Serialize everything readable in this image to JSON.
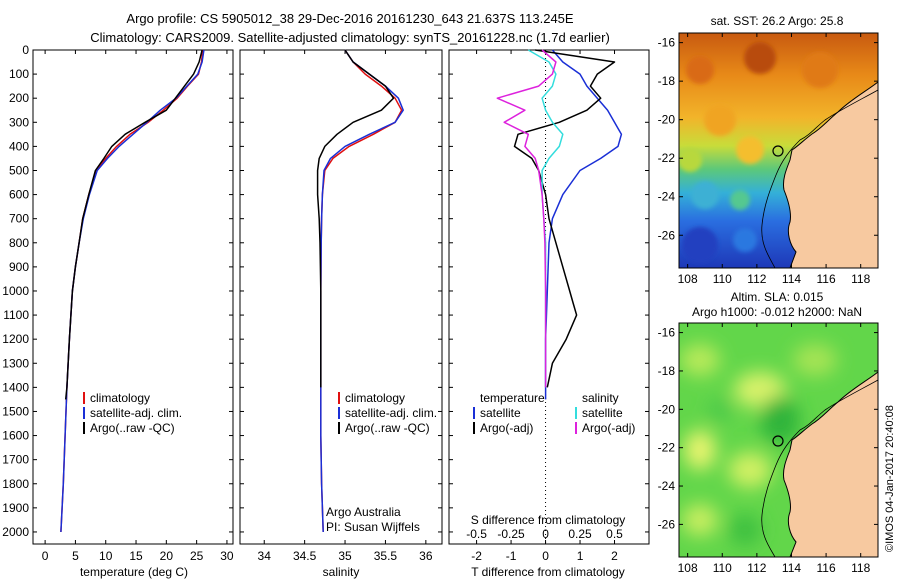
{
  "header": {
    "line1": "Argo profile: CS 5905012_38 29-Dec-2016 20161230_643 21.637S 113.245E",
    "line2": "Climatology: CARS2009. Satellite-adjusted climatology: synTS_20161228.nc (1.7d earlier)"
  },
  "colors": {
    "clim": "#e01010",
    "sat": "#1a2fd6",
    "argo": "#000000",
    "sat_s": "#33dddd",
    "argo_s": "#dd22dd",
    "land": "#f7c9a0"
  },
  "chart_data": [
    {
      "type": "line",
      "panel": "temperature",
      "xlabel": "temperature (deg C)",
      "ylabel": "",
      "xlim": [
        -2,
        31
      ],
      "ylim": [
        2050,
        0
      ],
      "xticks": [
        0,
        5,
        10,
        15,
        20,
        25,
        30
      ],
      "yticks": [
        0,
        100,
        200,
        300,
        400,
        500,
        600,
        700,
        800,
        900,
        1000,
        1100,
        1200,
        1300,
        1400,
        1500,
        1600,
        1700,
        1800,
        1900,
        2000
      ],
      "legend": [
        "climatology",
        "satellite-adj. clim.",
        "Argo(..raw -QC)"
      ],
      "series": [
        {
          "name": "climatology",
          "color": "clim",
          "x": [
            26.0,
            25.8,
            25.3,
            23.5,
            21.8,
            19.5,
            17.0,
            14.0,
            11.8,
            10.0,
            8.4,
            7.2,
            6.2,
            5.6,
            5.0,
            4.5,
            4.0,
            3.6,
            3.3,
            3.0,
            2.8,
            2.6
          ],
          "y": [
            0,
            50,
            100,
            150,
            200,
            250,
            300,
            350,
            400,
            450,
            500,
            600,
            700,
            800,
            900,
            1000,
            1200,
            1400,
            1600,
            1800,
            1900,
            2000
          ]
        },
        {
          "name": "satellite-adj. clim.",
          "color": "sat",
          "x": [
            26.2,
            25.9,
            25.2,
            23.4,
            21.6,
            19.0,
            16.8,
            14.5,
            12.2,
            10.3,
            8.6,
            7.3,
            6.3,
            5.6,
            5.0,
            4.5,
            4.0,
            3.6,
            3.3,
            3.0,
            2.8,
            2.6
          ],
          "y": [
            0,
            50,
            100,
            150,
            200,
            250,
            300,
            350,
            400,
            450,
            500,
            600,
            700,
            800,
            900,
            1000,
            1200,
            1400,
            1600,
            1800,
            1900,
            2000
          ]
        },
        {
          "name": "Argo(..raw -QC)",
          "color": "argo",
          "x": [
            25.9,
            25.4,
            24.5,
            23.0,
            21.5,
            20.0,
            16.5,
            13.2,
            11.0,
            9.7,
            8.3,
            7.2,
            6.2,
            5.6,
            5.0,
            4.5,
            4.0,
            3.6,
            3.4
          ],
          "y": [
            0,
            50,
            100,
            150,
            200,
            250,
            300,
            350,
            400,
            450,
            500,
            600,
            700,
            800,
            900,
            1000,
            1200,
            1400,
            1450
          ]
        }
      ]
    },
    {
      "type": "line",
      "panel": "salinity",
      "xlabel": "salinity",
      "ylabel": "",
      "xlim": [
        33.7,
        36.2
      ],
      "ylim": [
        2050,
        0
      ],
      "xticks": [
        34,
        34.5,
        35,
        35.5,
        36
      ],
      "legend": [
        "climatology",
        "satellite-adj. clim.",
        "Argo(..raw -QC)"
      ],
      "annotation": [
        "Argo Australia",
        "PI: Susan Wijffels"
      ],
      "series": [
        {
          "name": "climatology",
          "color": "clim",
          "x": [
            35.0,
            35.1,
            35.25,
            35.45,
            35.62,
            35.7,
            35.62,
            35.35,
            35.05,
            34.85,
            34.75,
            34.72,
            34.71,
            34.705,
            34.7,
            34.7,
            34.7,
            34.7,
            34.71,
            34.72,
            34.73
          ],
          "y": [
            0,
            50,
            100,
            150,
            200,
            250,
            300,
            350,
            400,
            450,
            500,
            600,
            700,
            800,
            1000,
            1200,
            1400,
            1600,
            1800,
            1900,
            2000
          ]
        },
        {
          "name": "satellite-adj. clim.",
          "color": "sat",
          "x": [
            35.0,
            35.1,
            35.3,
            35.5,
            35.66,
            35.72,
            35.62,
            35.3,
            35.0,
            34.82,
            34.74,
            34.72,
            34.71,
            34.705,
            34.7,
            34.7,
            34.7,
            34.7,
            34.71,
            34.72,
            34.73
          ],
          "y": [
            0,
            50,
            100,
            150,
            200,
            250,
            300,
            350,
            400,
            450,
            500,
            600,
            700,
            800,
            1000,
            1200,
            1400,
            1600,
            1800,
            1900,
            2000
          ]
        },
        {
          "name": "Argo(..raw -QC)",
          "color": "argo",
          "x": [
            35.0,
            35.1,
            35.3,
            35.5,
            35.6,
            35.45,
            35.1,
            34.9,
            34.75,
            34.68,
            34.66,
            34.66,
            34.68,
            34.69,
            34.7,
            34.7,
            34.7
          ],
          "y": [
            0,
            50,
            100,
            150,
            200,
            250,
            300,
            350,
            400,
            450,
            500,
            600,
            700,
            800,
            1000,
            1200,
            1400
          ]
        }
      ]
    },
    {
      "type": "line",
      "panel": "difference",
      "xlabel": "T difference from climatology",
      "xlabel2": "S difference from climatology",
      "xlim": [
        -2.8,
        3.0
      ],
      "ylim": [
        2050,
        0
      ],
      "xticks": [
        -2,
        -1,
        0,
        1,
        2
      ],
      "xticks_top": [
        "-0.5",
        "-0.25",
        "0",
        "0.25",
        "0.5"
      ],
      "legend_titles": [
        "temperature",
        "salinity"
      ],
      "legend": [
        "satellite",
        "Argo(-adj)",
        "satellite",
        "Argo(-adj)"
      ],
      "series": [
        {
          "name": "satellite",
          "color": "sat",
          "x": [
            0.2,
            0.5,
            1.0,
            1.2,
            1.5,
            1.8,
            2.0,
            2.2,
            2.1,
            1.6,
            1.0,
            0.5,
            0.2,
            0.1,
            0.05,
            0,
            0,
            0,
            0
          ],
          "y": [
            0,
            50,
            100,
            150,
            200,
            250,
            300,
            350,
            400,
            450,
            500,
            600,
            700,
            800,
            1000,
            1200,
            1300,
            1400,
            1450
          ]
        },
        {
          "name": "Argo(-adj)",
          "color": "argo",
          "x": [
            -0.3,
            2.0,
            1.5,
            1.3,
            1.6,
            1.2,
            0.4,
            -0.8,
            -0.9,
            -0.4,
            -0.2,
            0.0,
            0.1,
            0.3,
            0.5,
            0.7,
            0.8,
            0.9,
            0.6,
            0.2,
            0.05
          ],
          "y": [
            0,
            50,
            100,
            150,
            200,
            250,
            300,
            350,
            400,
            450,
            500,
            600,
            700,
            800,
            900,
            1000,
            1050,
            1100,
            1200,
            1300,
            1400
          ]
        },
        {
          "name": "satellite",
          "color": "sat_s",
          "x": [
            -0.5,
            0.1,
            0.3,
            0.2,
            -0.1,
            0.0,
            0.2,
            0.5,
            0.4,
            0.1,
            -0.1,
            -0.1,
            -0.05,
            0,
            0,
            0,
            0
          ],
          "y": [
            0,
            50,
            100,
            150,
            200,
            250,
            300,
            350,
            400,
            450,
            500,
            600,
            700,
            800,
            1000,
            1200,
            1400
          ]
        },
        {
          "name": "Argo(-adj)",
          "color": "argo_s",
          "x": [
            -0.1,
            0.3,
            0.2,
            -0.2,
            -1.4,
            -0.6,
            -1.2,
            -0.5,
            -0.6,
            -0.3,
            -0.2,
            -0.1,
            -0.05,
            -0.02,
            0,
            0,
            0
          ],
          "y": [
            0,
            50,
            100,
            150,
            200,
            250,
            300,
            350,
            400,
            450,
            500,
            600,
            700,
            800,
            1000,
            1200,
            1400
          ]
        }
      ]
    },
    {
      "type": "heatmap",
      "panel": "sst-map",
      "title": "sat. SST: 26.2  Argo: 25.8",
      "xlim": [
        107.5,
        119
      ],
      "ylim": [
        -27.7,
        -15.5
      ],
      "xticks": [
        108,
        110,
        112,
        114,
        116,
        118
      ],
      "yticks": [
        -16,
        -18,
        -20,
        -22,
        -24,
        -26
      ],
      "argo_position": [
        113.245,
        -21.637
      ]
    },
    {
      "type": "heatmap",
      "panel": "sla-map",
      "title": "Altim. SLA: 0.015",
      "subtitle": "Argo h1000: -0.012 h2000: NaN",
      "xlim": [
        107.5,
        119
      ],
      "ylim": [
        -27.7,
        -15.5
      ],
      "xticks": [
        108,
        110,
        112,
        114,
        116,
        118
      ],
      "yticks": [
        -16,
        -18,
        -20,
        -22,
        -24,
        -26
      ],
      "argo_position": [
        113.245,
        -21.637
      ]
    }
  ],
  "watermark": "©IMOS 04-Jan-2017 20:40:08"
}
